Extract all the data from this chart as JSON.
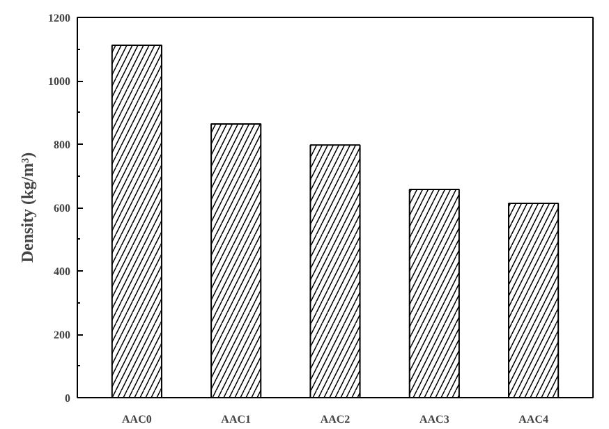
{
  "chart_data": {
    "type": "bar",
    "ylabel": "Density (kg/m³)",
    "categories": [
      "AAC0",
      "AAC1",
      "AAC2",
      "AAC3",
      "AAC4"
    ],
    "values": [
      1112,
      864,
      797,
      657,
      613
    ],
    "color": "#ffffff",
    "ylim": [
      0,
      1200
    ],
    "yticks": [
      0,
      200,
      400,
      600,
      800,
      1000,
      1200
    ],
    "grid": false
  }
}
